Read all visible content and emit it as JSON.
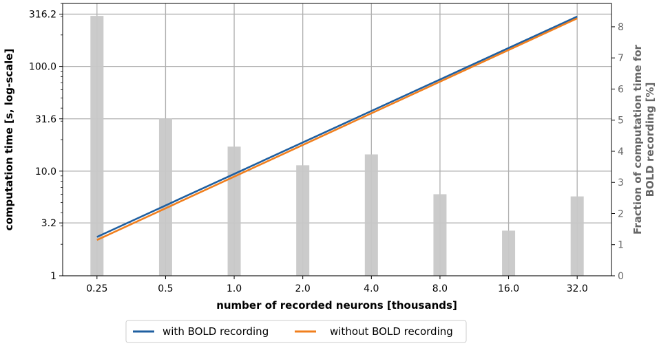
{
  "chart_data": {
    "type": "line",
    "x_scale": "log2",
    "categories": [
      "0.25",
      "0.5",
      "1.0",
      "2.0",
      "4.0",
      "8.0",
      "16.0",
      "32.0"
    ],
    "x": [
      0.25,
      0.5,
      1.0,
      2.0,
      4.0,
      8.0,
      16.0,
      32.0
    ],
    "xlabel": "number of recorded neurons [thousands]",
    "y_left": {
      "label": "computation time [s, log-scale]",
      "scale": "log",
      "range": [
        1,
        400
      ],
      "ticks": [
        1,
        3.2,
        10.0,
        31.6,
        100.0,
        316.2
      ],
      "tick_labels": [
        "1",
        "3.2",
        "10.0",
        "31.6",
        "100.0",
        "316.2"
      ]
    },
    "y_right": {
      "label_line1": "Fraction of computation time for",
      "label_line2": "BOLD recording [%]",
      "scale": "linear",
      "range": [
        0,
        8.75
      ],
      "ticks": [
        0,
        1,
        2,
        3,
        4,
        5,
        6,
        7,
        8
      ],
      "tick_labels": [
        "0",
        "1",
        "2",
        "3",
        "4",
        "5",
        "6",
        "7",
        "8"
      ],
      "color": "#666666"
    },
    "series": [
      {
        "name": "with BOLD recording",
        "color": "#1f5fa0",
        "endpoints_x": [
          0.25,
          32.0
        ],
        "endpoints_y": [
          2.35,
          300
        ]
      },
      {
        "name": "without BOLD recording",
        "color": "#f07f1e",
        "endpoints_x": [
          0.25,
          32.0
        ],
        "endpoints_y": [
          2.2,
          288
        ]
      }
    ],
    "bars": {
      "axis": "right",
      "color": "#c8c8c8",
      "values": [
        8.35,
        5.05,
        4.15,
        3.55,
        3.9,
        2.62,
        1.45,
        2.55
      ]
    },
    "grid": true,
    "legend_position": "bottom-center"
  }
}
